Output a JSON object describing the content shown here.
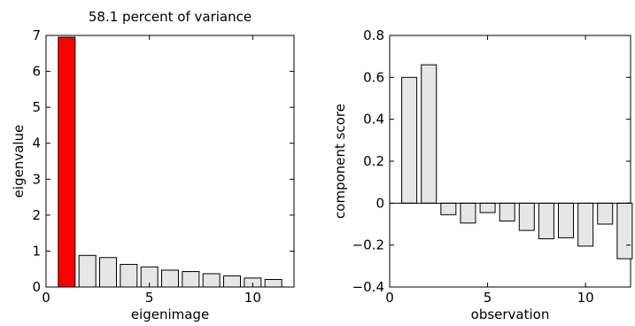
{
  "chart_data": [
    {
      "type": "bar",
      "title": "58.1 percent of variance",
      "xlabel": "eigenimage",
      "ylabel": "eigenvalue",
      "x": [
        1,
        2,
        3,
        4,
        5,
        6,
        7,
        8,
        9,
        10,
        11
      ],
      "values": [
        6.95,
        0.88,
        0.82,
        0.63,
        0.56,
        0.47,
        0.43,
        0.37,
        0.31,
        0.25,
        0.21
      ],
      "xlim": [
        0,
        12
      ],
      "ylim": [
        0,
        7
      ],
      "xticks": [
        0,
        5,
        10
      ],
      "yticks": [
        0,
        1,
        2,
        3,
        4,
        5,
        6,
        7
      ],
      "highlight_index": 0,
      "highlight_color": "#ff0000",
      "bar_color": "#e6e6e6",
      "grid": false
    },
    {
      "type": "bar",
      "title": "",
      "xlabel": "observation",
      "ylabel": "component score",
      "x": [
        1,
        2,
        3,
        4,
        5,
        6,
        7,
        8,
        9,
        10,
        11,
        12
      ],
      "values": [
        0.6,
        0.66,
        -0.055,
        -0.095,
        -0.045,
        -0.085,
        -0.13,
        -0.17,
        -0.165,
        -0.205,
        -0.1,
        -0.265
      ],
      "xlim": [
        0,
        12.3
      ],
      "ylim": [
        -0.4,
        0.8
      ],
      "xticks": [
        0,
        5,
        10
      ],
      "yticks": [
        -0.4,
        -0.2,
        0,
        0.2,
        0.4,
        0.6,
        0.8
      ],
      "ytick_labels": [
        "−0.4",
        "−0.2",
        "0",
        "0.2",
        "0.4",
        "0.6",
        "0.8"
      ],
      "bar_color": "#e6e6e6",
      "grid": false
    }
  ]
}
